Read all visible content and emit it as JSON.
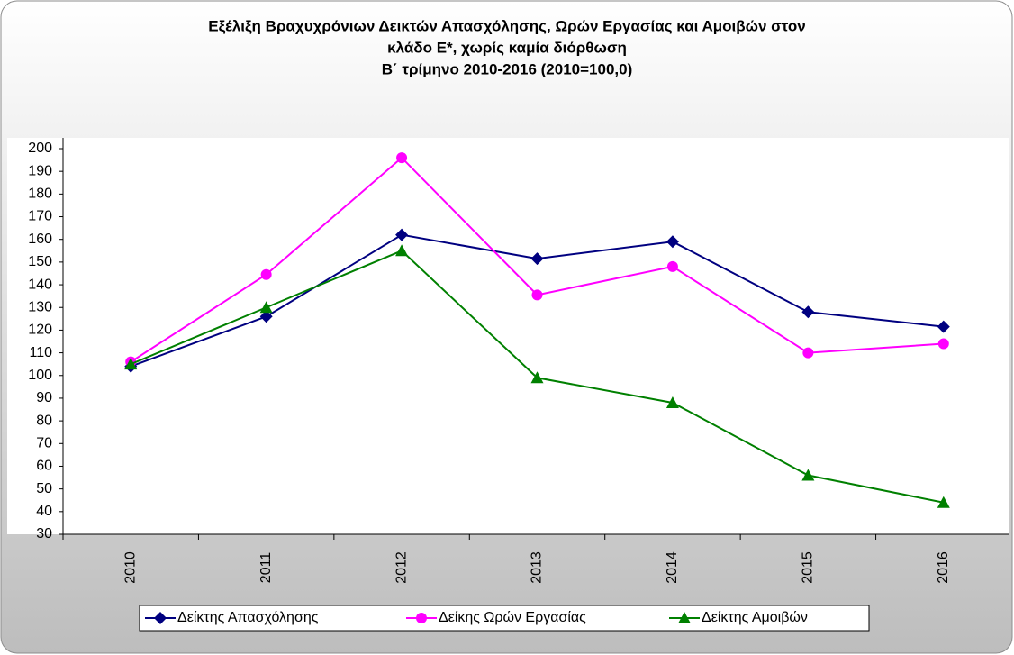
{
  "chart_data": {
    "type": "line",
    "title": [
      "Εξέλιξη Βραχυχρόνιων Δεικτών Απασχόλησης, Ωρών Εργασίας και Αμοιβών στον",
      "κλάδο Ε*, χωρίς καμία διόρθωση",
      "Β΄ τρίμηνο 2010-2016 (2010=100,0)"
    ],
    "categories": [
      "2010",
      "2011",
      "2012",
      "2013",
      "2014",
      "2015",
      "2016"
    ],
    "series": [
      {
        "name": "Δείκτης Απασχόλησης",
        "color": "#000080",
        "marker": "diamond",
        "values": [
          104,
          126,
          162,
          151.5,
          159,
          128,
          121.5
        ]
      },
      {
        "name": "Δείκης Ωρών Εργασίας",
        "color": "#ff00ff",
        "marker": "circle",
        "values": [
          106,
          144.5,
          196,
          135.5,
          148,
          110,
          114
        ]
      },
      {
        "name": "Δείκτης Αμοιβών",
        "color": "#008000",
        "marker": "triangle",
        "values": [
          105,
          130,
          155,
          99,
          88,
          56,
          44
        ]
      }
    ],
    "ylim": [
      30,
      200
    ],
    "yticks": [
      30,
      40,
      50,
      60,
      70,
      80,
      90,
      100,
      110,
      120,
      130,
      140,
      150,
      160,
      170,
      180,
      190,
      200
    ],
    "grid": false,
    "legend": "bottom"
  }
}
